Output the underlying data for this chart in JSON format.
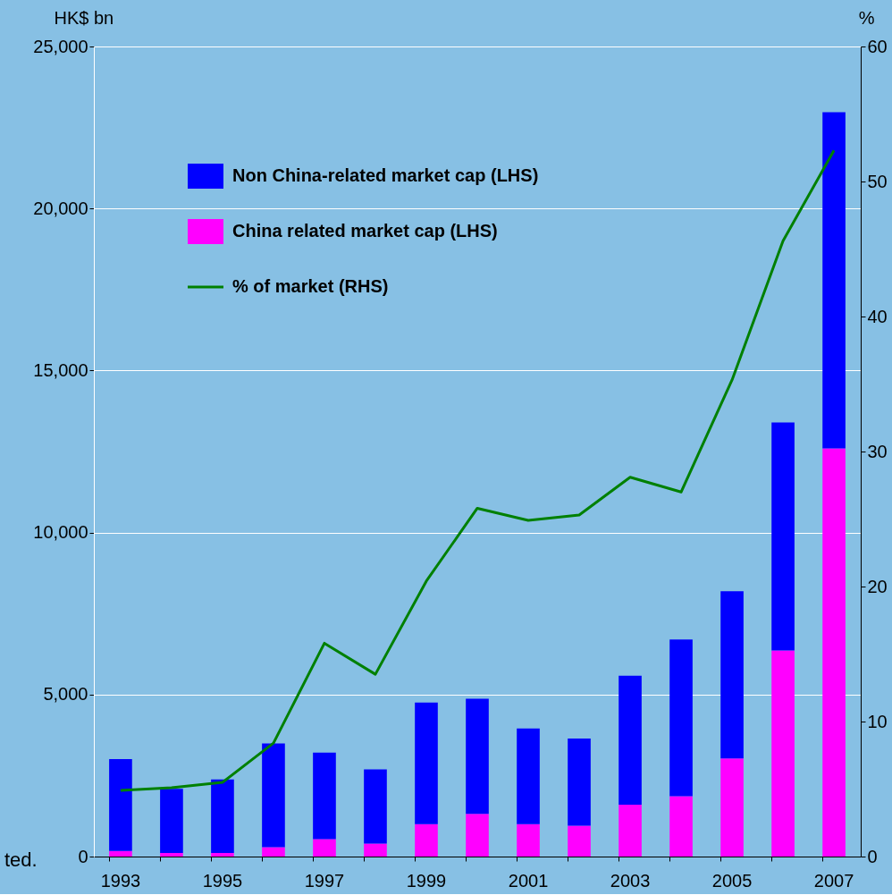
{
  "chart_data": {
    "type": "bar",
    "stacked": true,
    "ylabel": "HK$ bn",
    "y2label": "%",
    "categories": [
      "1993",
      null,
      "1995",
      null,
      "1997",
      null,
      "1999",
      null,
      "2001",
      null,
      "2003",
      null,
      "2005",
      null,
      "2007"
    ],
    "series": [
      {
        "name": "China related market cap (LHS)",
        "color": "#ff00ff",
        "values": [
          170,
          110,
          110,
          290,
          540,
          400,
          1000,
          1320,
          1000,
          950,
          1600,
          1860,
          3030,
          6360,
          12600
        ]
      },
      {
        "name": "Non China-related market cap (LHS)",
        "color": "#0000ff",
        "values": [
          2840,
          1980,
          2270,
          3200,
          2670,
          2290,
          3750,
          3550,
          2950,
          2690,
          3980,
          4840,
          5160,
          7040,
          10370
        ]
      },
      {
        "name": "% of market (RHS)",
        "type": "line",
        "axis": "y2",
        "color": "#008000",
        "values": [
          4.9,
          5.1,
          5.5,
          8.4,
          15.8,
          13.5,
          20.4,
          25.8,
          24.9,
          25.3,
          28.1,
          27.0,
          35.3,
          45.6,
          52.3
        ]
      }
    ],
    "ylim": [
      0,
      25000
    ],
    "yticks": [
      0,
      {
        "value": 5000,
        "label": "5,000"
      },
      {
        "value": 10000,
        "label": "10,000"
      },
      {
        "value": 15000,
        "label": "15,000"
      },
      {
        "value": 20000,
        "label": "20,000"
      },
      {
        "value": 25000,
        "label": "25,000"
      }
    ],
    "y2lim": [
      0,
      60
    ],
    "y2ticks": [
      0,
      10,
      20,
      30,
      40,
      50,
      60
    ],
    "grid": "y",
    "legend": "top left",
    "annotations": [
      "ted."
    ]
  }
}
